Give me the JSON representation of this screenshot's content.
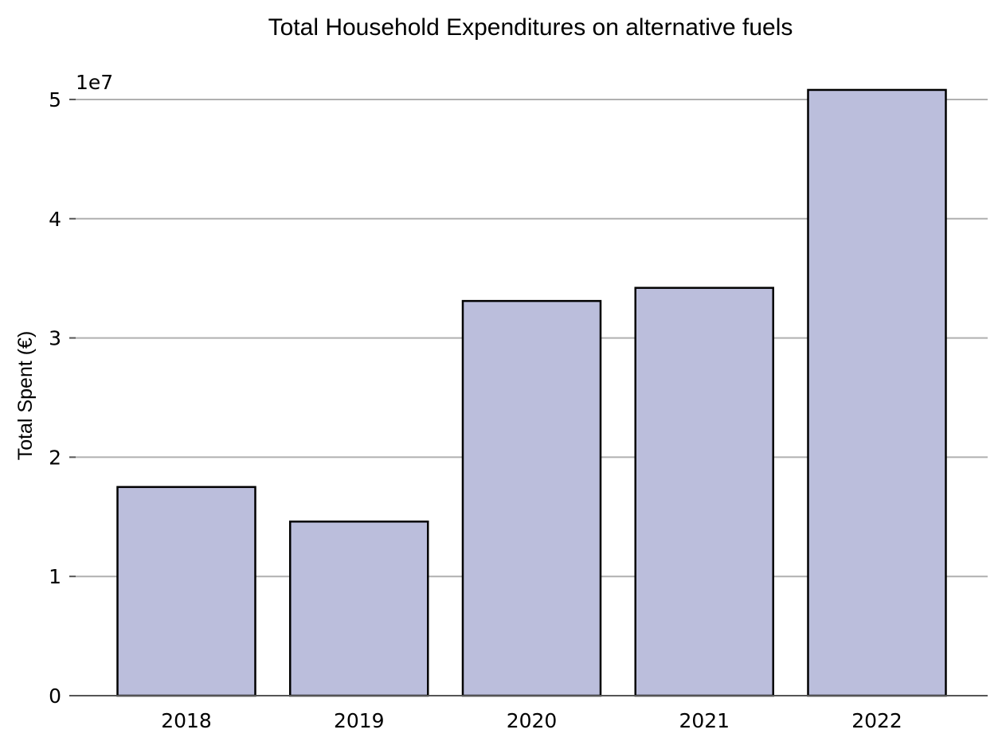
{
  "chart_data": {
    "type": "bar",
    "title": "Total Household Expenditures on alternative fuels",
    "ylabel": "Total Spent (€)",
    "xlabel": "",
    "categories": [
      "2018",
      "2019",
      "2020",
      "2021",
      "2022"
    ],
    "values": [
      17500000,
      14600000,
      33100000,
      34200000,
      50800000
    ],
    "ylim": [
      0,
      53000000
    ],
    "yticks": [
      0,
      10000000,
      20000000,
      30000000,
      40000000,
      50000000
    ],
    "ytick_labels": [
      "0",
      "1",
      "2",
      "3",
      "4",
      "5"
    ],
    "y_offset_label": "1e7",
    "grid": "horizontal",
    "bar_color": "#bbbedc",
    "bar_edge_color": "#000000",
    "grid_color": "#b0b0b0"
  }
}
